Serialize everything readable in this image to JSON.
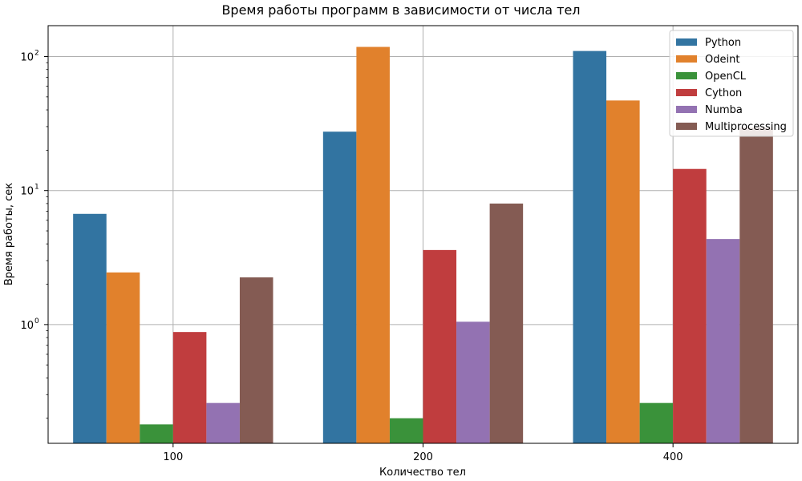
{
  "chart_data": {
    "type": "bar",
    "title": "Время работы программ в зависимости от числа тел",
    "xlabel": "Количество тел",
    "ylabel": "Время работы, сек",
    "yscale": "log",
    "ylim": [
      0.13,
      170
    ],
    "y_ticks": [
      {
        "value": 1,
        "base": "10",
        "exp": "0"
      },
      {
        "value": 10,
        "base": "10",
        "exp": "1"
      },
      {
        "value": 100,
        "base": "10",
        "exp": "2"
      }
    ],
    "categories": [
      "100",
      "200",
      "400"
    ],
    "grid": true,
    "legend_position": "top-right",
    "series": [
      {
        "name": "Python",
        "color": "#3274a1",
        "values": [
          6.7,
          27.5,
          110
        ]
      },
      {
        "name": "Odeint",
        "color": "#e1812c",
        "values": [
          2.45,
          118,
          47
        ]
      },
      {
        "name": "OpenCL",
        "color": "#3a923a",
        "values": [
          0.18,
          0.2,
          0.26
        ]
      },
      {
        "name": "Cython",
        "color": "#c03d3e",
        "values": [
          0.88,
          3.6,
          14.5
        ]
      },
      {
        "name": "Numba",
        "color": "#9372b2",
        "values": [
          0.26,
          1.05,
          4.35
        ]
      },
      {
        "name": "Multiprocessing",
        "color": "#845b53",
        "values": [
          2.25,
          8.0,
          29.5
        ]
      }
    ]
  }
}
